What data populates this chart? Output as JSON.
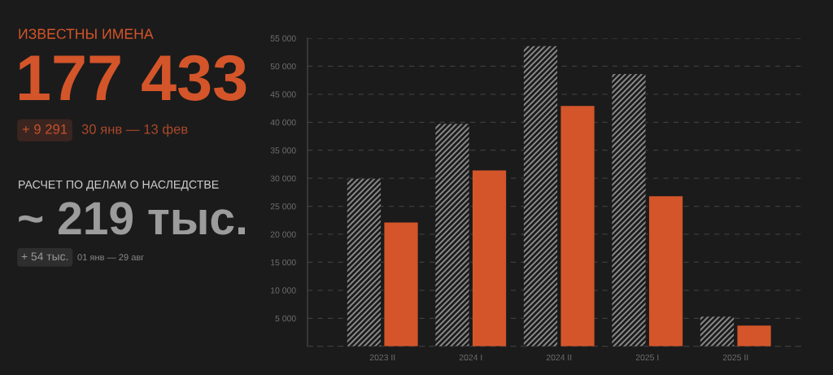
{
  "chart_data": [
    {
      "type": "other",
      "title": "ИЗВЕСТНЫ ИМЕНА",
      "annotations": [
        "177 433",
        "+ 9 291",
        "30 янв — 13 фев",
        "РАСЧЕТ ПО ДЕЛАМ О НАСЛЕДСТВЕ",
        "~ 219 тыс.",
        "+ 54 тыс.",
        "01 янв — 29 авг"
      ]
    },
    {
      "type": "bar",
      "categories": [
        "2023 II",
        "2024 I",
        "2024 II",
        "2025 I",
        "2025 II"
      ],
      "series": [
        {
          "color": "#8a8a8a",
          "values": [
            29900,
            39700,
            53600,
            48600,
            5300
          ]
        },
        {
          "color": "#d4552a",
          "values": [
            22100,
            31400,
            42900,
            26800,
            3700
          ]
        }
      ],
      "ylim": [
        0,
        55000
      ],
      "yticks": [
        {
          "value": 0,
          "label": null
        },
        {
          "value": 5000,
          "label": "5 000"
        },
        {
          "value": 10000,
          "label": "10 000"
        },
        {
          "value": 15000,
          "label": "15 000"
        },
        {
          "value": 20000,
          "label": "20 000"
        },
        {
          "value": 25000,
          "label": "25 000"
        },
        {
          "value": 30000,
          "label": "30 000"
        },
        {
          "value": 35000,
          "label": "35 000"
        },
        {
          "value": 40000,
          "label": "40 000"
        },
        {
          "value": 45000,
          "label": "45 000"
        },
        {
          "value": 50000,
          "label": "50 000"
        },
        {
          "value": 55000,
          "label": "55 000"
        }
      ],
      "grid": "y"
    }
  ]
}
